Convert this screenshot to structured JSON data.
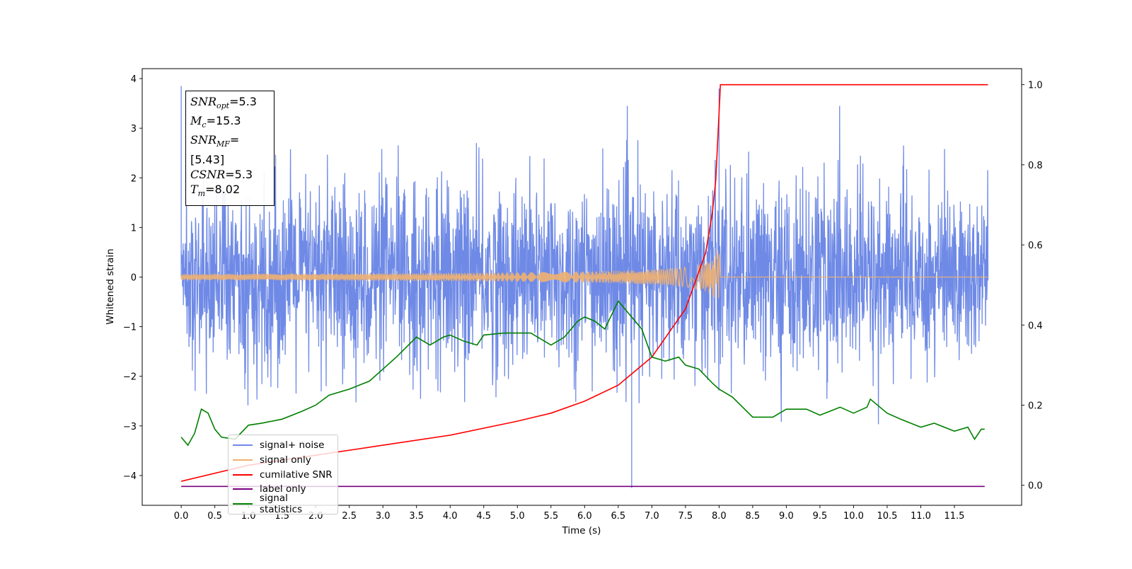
{
  "chart_data": {
    "type": "line",
    "xlabel": "Time (s)",
    "ylabel": "Whitened strain",
    "xlim": [
      -0.58,
      12.5
    ],
    "ylim": [
      -4.6,
      4.2
    ],
    "y2lim": [
      -0.05,
      1.04
    ],
    "x_ticks": [
      "0.0",
      "0.5",
      "1.0",
      "1.5",
      "2.0",
      "2.5",
      "3.0",
      "3.5",
      "4.0",
      "4.5",
      "5.0",
      "5.5",
      "6.0",
      "6.5",
      "7.0",
      "7.5",
      "8.0",
      "8.5",
      "9.0",
      "9.5",
      "10.0",
      "10.5",
      "11.0",
      "11.5"
    ],
    "y_ticks": [
      "4",
      "3",
      "2",
      "1",
      "0",
      "−1",
      "−2",
      "−3",
      "−4"
    ],
    "y2_ticks": [
      "1.0",
      "0.8",
      "0.6",
      "0.4",
      "0.2",
      "0.0"
    ],
    "annotation": [
      {
        "sym": "SNR",
        "sub": "opt",
        "value": "=5.3"
      },
      {
        "sym": "M",
        "sub": "c",
        "value": "=15.3"
      },
      {
        "sym": "SNR",
        "sub": "MF",
        "value": "=[5.43]"
      },
      {
        "sym": "CSNR",
        "sub": "",
        "value": "=5.3"
      },
      {
        "sym": "T",
        "sub": "m",
        "value": "=8.02"
      }
    ],
    "legend_position": "lower-left",
    "series": [
      {
        "name": "signal+ noise",
        "color": "#6f8ae6",
        "axis": "left",
        "kind": "noise",
        "duration": 12.0,
        "sigma": 0.95,
        "peak_max": 3.85,
        "peak_min": -4.25
      },
      {
        "name": "signal only",
        "color": "#f0b070",
        "axis": "left",
        "kind": "chirp",
        "merger_time": 8.02,
        "peak": 0.9
      },
      {
        "name": "cumilative SNR",
        "color": "#ff0000",
        "axis": "right",
        "x": [
          0.0,
          1.0,
          2.0,
          3.0,
          4.0,
          5.0,
          5.5,
          6.0,
          6.5,
          7.0,
          7.5,
          7.8,
          7.9,
          7.95,
          8.0,
          8.02,
          12.0
        ],
        "values": [
          0.01,
          0.05,
          0.075,
          0.1,
          0.125,
          0.16,
          0.18,
          0.21,
          0.25,
          0.32,
          0.44,
          0.58,
          0.68,
          0.76,
          0.93,
          1.0,
          1.0
        ]
      },
      {
        "name": "label only",
        "color": "#7b0080",
        "axis": "left",
        "x": [
          0.0,
          11.95
        ],
        "values": [
          -4.22,
          -4.22
        ]
      },
      {
        "name": "signal statistics",
        "color": "#008000",
        "axis": "right",
        "x": [
          0.0,
          0.1,
          0.2,
          0.3,
          0.4,
          0.5,
          0.6,
          0.8,
          1.0,
          1.2,
          1.5,
          1.8,
          2.0,
          2.2,
          2.5,
          2.8,
          3.0,
          3.2,
          3.5,
          3.7,
          3.9,
          4.0,
          4.2,
          4.4,
          4.5,
          4.8,
          5.0,
          5.2,
          5.5,
          5.7,
          5.9,
          6.0,
          6.15,
          6.3,
          6.5,
          6.7,
          6.85,
          7.0,
          7.2,
          7.4,
          7.5,
          7.7,
          7.9,
          8.0,
          8.2,
          8.5,
          8.8,
          9.0,
          9.3,
          9.5,
          9.8,
          10.0,
          10.2,
          10.25,
          10.5,
          10.7,
          11.0,
          11.2,
          11.5,
          11.7,
          11.8,
          11.9,
          11.95
        ],
        "values": [
          0.12,
          0.1,
          0.13,
          0.19,
          0.18,
          0.14,
          0.12,
          0.115,
          0.15,
          0.155,
          0.165,
          0.185,
          0.2,
          0.225,
          0.24,
          0.26,
          0.29,
          0.32,
          0.37,
          0.35,
          0.37,
          0.375,
          0.36,
          0.35,
          0.375,
          0.38,
          0.38,
          0.38,
          0.35,
          0.37,
          0.41,
          0.42,
          0.41,
          0.39,
          0.46,
          0.42,
          0.39,
          0.32,
          0.31,
          0.32,
          0.3,
          0.29,
          0.255,
          0.24,
          0.22,
          0.17,
          0.17,
          0.19,
          0.19,
          0.175,
          0.195,
          0.18,
          0.195,
          0.215,
          0.18,
          0.165,
          0.145,
          0.155,
          0.135,
          0.145,
          0.115,
          0.14,
          0.14
        ]
      }
    ]
  }
}
